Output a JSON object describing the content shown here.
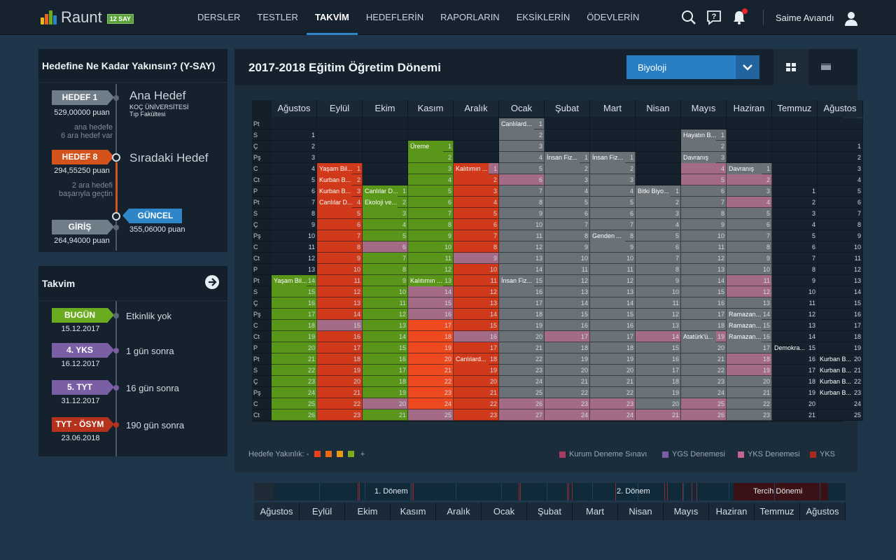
{
  "app": {
    "name": "Raunt",
    "badge": "12 SAY",
    "user": "Saime Avıandı"
  },
  "nav": [
    "DERSLER",
    "TESTLER",
    "TAKVİM",
    "HEDEFLERİN",
    "RAPORLARIN",
    "EKSİKLERİN",
    "ÖDEVLERİN"
  ],
  "nav_active": 2,
  "icons": {
    "search": "search-icon",
    "help": "help-icon",
    "bell": "bell-icon",
    "user": "user-icon"
  },
  "goal": {
    "title": "Hedefine Ne Kadar Yakınsın? (Y-SAY)",
    "hedef1_label": "HEDEF 1",
    "hedef1_score": "529,00000 puan",
    "ana_hedef": "Ana Hedef",
    "ana_school": "KOÇ ÜNİVERSİTESİ",
    "ana_faculty": "Tıp Fakültesi",
    "ara_hedef_1": "ana hedefe",
    "ara_hedef_2": "6 ara hedef var",
    "hedef8_label": "HEDEF 8",
    "hedef8_score": "294,55250 puan",
    "siradaki": "Sıradaki Hedef",
    "gec_1": "2 ara hedefi",
    "gec_2": "başarıyla geçtin",
    "guncel_label": "GÜNCEL",
    "guncel_score": "355,06000 puan",
    "giris_label": "GİRİŞ",
    "giris_score": "264,94000 puan"
  },
  "takvim": {
    "title": "Takvim",
    "events": [
      {
        "tag": "BUGÜN",
        "date": "15.12.2017",
        "text": "Etkinlik yok",
        "color": "#6aab1f"
      },
      {
        "tag": "4. YKS",
        "date": "16.12.2017",
        "text": "1 gün sonra",
        "color": "#7b5fa5"
      },
      {
        "tag": "5. TYT",
        "date": "31.12.2017",
        "text": "16 gün sonra",
        "color": "#7b5fa5"
      },
      {
        "tag": "TYT - ÖSYM",
        "date": "23.06.2018",
        "text": "190 gün sonra",
        "color": "#b5321c"
      }
    ]
  },
  "main": {
    "title": "2017-2018 Eğitim Öğretim Dönemi",
    "subject": "Biyoloji"
  },
  "calendar": {
    "months": [
      "Ağustos",
      "Eylül",
      "Ekim",
      "Kasım",
      "Aralık",
      "Ocak",
      "Şubat",
      "Mart",
      "Nisan",
      "Mayıs",
      "Haziran",
      "Temmuz",
      "Ağustos"
    ],
    "dow": [
      "Pt",
      "S",
      "Ç",
      "Pş",
      "C",
      "Ct",
      "P",
      "Pt",
      "S",
      "Ç",
      "Pş",
      "C",
      "Ct",
      "P",
      "Pt",
      "S",
      "Ç",
      "Pş",
      "C",
      "Ct",
      "P",
      "Pt",
      "S",
      "Ç",
      "Pş",
      "C",
      "Ct"
    ],
    "starts": [
      null,
      null,
      null,
      null,
      null,
      1,
      null,
      null,
      null,
      null,
      null,
      null,
      null
    ],
    "day_text": {
      "m0": [
        "",
        "1",
        "2",
        "3",
        "4",
        "5",
        "6",
        "7",
        "8",
        "9",
        "10",
        "11",
        "12",
        "13",
        "14",
        "15",
        "16",
        "17",
        "18",
        "19",
        "20",
        "21",
        "22",
        "23",
        "24",
        "25",
        "26"
      ],
      "m1": [
        "",
        "",
        "",
        "",
        "1",
        "2",
        "3",
        "4",
        "5",
        "6",
        "7",
        "8",
        "9",
        "10",
        "11",
        "12",
        "13",
        "14",
        "15",
        "16",
        "17",
        "18",
        "19",
        "20",
        "21",
        "22",
        "23"
      ],
      "m2": [
        "",
        "",
        "",
        "",
        "",
        "",
        "1",
        "2",
        "3",
        "4",
        "5",
        "6",
        "7",
        "8",
        "9",
        "10",
        "11",
        "12",
        "13",
        "14",
        "15",
        "16",
        "17",
        "18",
        "19",
        "20",
        "21"
      ],
      "m3": [
        "",
        "",
        "1",
        "2",
        "3",
        "4",
        "5",
        "6",
        "7",
        "8",
        "9",
        "10",
        "11",
        "12",
        "13",
        "14",
        "15",
        "16",
        "17",
        "18",
        "19",
        "20",
        "21",
        "22",
        "23",
        "24",
        "25"
      ],
      "m4": [
        "",
        "",
        "",
        "",
        "1",
        "2",
        "3",
        "4",
        "5",
        "6",
        "7",
        "8",
        "9",
        "10",
        "11",
        "12",
        "13",
        "14",
        "15",
        "16",
        "17",
        "18",
        "19",
        "20",
        "21",
        "22",
        "23"
      ],
      "m5": [
        "1",
        "2",
        "3",
        "4",
        "5",
        "6",
        "7",
        "8",
        "9",
        "10",
        "11",
        "12",
        "13",
        "14",
        "15",
        "16",
        "17",
        "18",
        "19",
        "20",
        "21",
        "22",
        "23",
        "24",
        "25",
        "26",
        "27"
      ],
      "m6": [
        "",
        "",
        "",
        "1",
        "2",
        "3",
        "4",
        "5",
        "6",
        "7",
        "8",
        "9",
        "10",
        "11",
        "12",
        "13",
        "14",
        "15",
        "16",
        "17",
        "18",
        "19",
        "20",
        "21",
        "22",
        "23",
        "24"
      ],
      "m7": [
        "",
        "",
        "",
        "1",
        "2",
        "3",
        "4",
        "5",
        "6",
        "7",
        "8",
        "9",
        "10",
        "11",
        "12",
        "13",
        "14",
        "15",
        "16",
        "17",
        "18",
        "19",
        "20",
        "21",
        "22",
        "23",
        "24"
      ],
      "m8": [
        "",
        "",
        "",
        "",
        "",
        "",
        "1",
        "2",
        "3",
        "4",
        "5",
        "6",
        "7",
        "8",
        "9",
        "10",
        "11",
        "12",
        "13",
        "14",
        "15",
        "16",
        "17",
        "18",
        "19",
        "20",
        "21"
      ],
      "m9": [
        "",
        "1",
        "2",
        "3",
        "4",
        "5",
        "6",
        "7",
        "8",
        "9",
        "10",
        "11",
        "12",
        "13",
        "14",
        "15",
        "16",
        "17",
        "18",
        "19",
        "20",
        "21",
        "22",
        "23",
        "24",
        "25",
        "26"
      ],
      "m10": [
        "",
        "",
        "",
        "",
        "1",
        "2",
        "3",
        "4",
        "5",
        "6",
        "7",
        "8",
        "9",
        "10",
        "11",
        "12",
        "13",
        "14",
        "15",
        "16",
        "17",
        "18",
        "19",
        "20",
        "21",
        "22",
        "23"
      ],
      "m11": [
        "",
        "",
        "",
        "",
        "",
        "",
        "1",
        "2",
        "3",
        "4",
        "5",
        "6",
        "7",
        "8",
        "9",
        "10",
        "11",
        "12",
        "13",
        "14",
        "15",
        "16",
        "17",
        "18",
        "19",
        "20",
        "21"
      ],
      "m12": [
        "",
        "",
        "1",
        "2",
        "3",
        "4",
        "5",
        "6",
        "7",
        "8",
        "9",
        "10",
        "11",
        "12",
        "13",
        "14",
        "15",
        "16",
        "17",
        "18",
        "19",
        "20",
        "21",
        "22",
        "23",
        "24",
        "25"
      ]
    },
    "events": [
      {
        "m": 1,
        "r": 4,
        "text": "Yaşam Bil..."
      },
      {
        "m": 1,
        "r": 5,
        "text": "Kurban B..."
      },
      {
        "m": 1,
        "r": 6,
        "text": "Kurban B..."
      },
      {
        "m": 1,
        "r": 7,
        "text": "Canlılar D..."
      },
      {
        "m": 2,
        "r": 6,
        "text": "Canlılar D..."
      },
      {
        "m": 2,
        "r": 7,
        "text": "Ekoloji ve..."
      },
      {
        "m": 3,
        "r": 2,
        "text": "Üreme"
      },
      {
        "m": 3,
        "r": 14,
        "text": "Kalıtımın ..."
      },
      {
        "m": 4,
        "r": 4,
        "text": "Kalıtımın ..."
      },
      {
        "m": 4,
        "r": 21,
        "text": "Canlılard..."
      },
      {
        "m": 5,
        "r": 0,
        "text": "Canlılard..."
      },
      {
        "m": 5,
        "r": 14,
        "text": "İnsan Fiz..."
      },
      {
        "m": 6,
        "r": 3,
        "text": "İnsan Fiz..."
      },
      {
        "m": 7,
        "r": 3,
        "text": "İnsan Fiz..."
      },
      {
        "m": 7,
        "r": 10,
        "text": "Genden ..."
      },
      {
        "m": 8,
        "r": 6,
        "text": "Bitki Biyo..."
      },
      {
        "m": 9,
        "r": 1,
        "text": "Hayatın B..."
      },
      {
        "m": 9,
        "r": 3,
        "text": "Davranış"
      },
      {
        "m": 9,
        "r": 19,
        "text": "Atatürk'ü..."
      },
      {
        "m": 10,
        "r": 4,
        "text": "Davranış"
      },
      {
        "m": 10,
        "r": 17,
        "text": "Ramazan..."
      },
      {
        "m": 10,
        "r": 18,
        "text": "Ramazan..."
      },
      {
        "m": 10,
        "r": 19,
        "text": "Ramazan..."
      },
      {
        "m": 11,
        "r": 20,
        "text": "Demokra..."
      },
      {
        "m": 12,
        "r": 21,
        "text": "Kurban B..."
      },
      {
        "m": 12,
        "r": 22,
        "text": "Kurban B..."
      },
      {
        "m": 12,
        "r": 23,
        "text": "Kurban B..."
      },
      {
        "m": 12,
        "r": 24,
        "text": "Kurban B..."
      },
      {
        "m": 0,
        "r": 14,
        "text": "Yaşam Bil..."
      }
    ]
  },
  "legend": {
    "proximity": "Hedefe Yakınlık:",
    "minus": "-",
    "plus": "+",
    "scale": [
      "#e8401c",
      "#ef6a12",
      "#e89a12",
      "#7aad1c"
    ],
    "items": [
      {
        "label": "Kurum Deneme Sınavı",
        "color": "#a83b63"
      },
      {
        "label": "YGS Denemesi",
        "color": "#7b5fa5"
      },
      {
        "label": "YKS Denemesi",
        "color": "#c46490"
      },
      {
        "label": "YKS",
        "color": "#a82a1c"
      }
    ]
  },
  "timeline": {
    "donem1": "1. Dönem",
    "donem2": "2. Dönem",
    "tercih": "Tercih Dönemi",
    "months": [
      "Ağustos",
      "Eylül",
      "Ekim",
      "Kasım",
      "Aralık",
      "Ocak",
      "Şubat",
      "Mart",
      "Nisan",
      "Mayıs",
      "Haziran",
      "Temmuz",
      "Ağustos"
    ]
  }
}
